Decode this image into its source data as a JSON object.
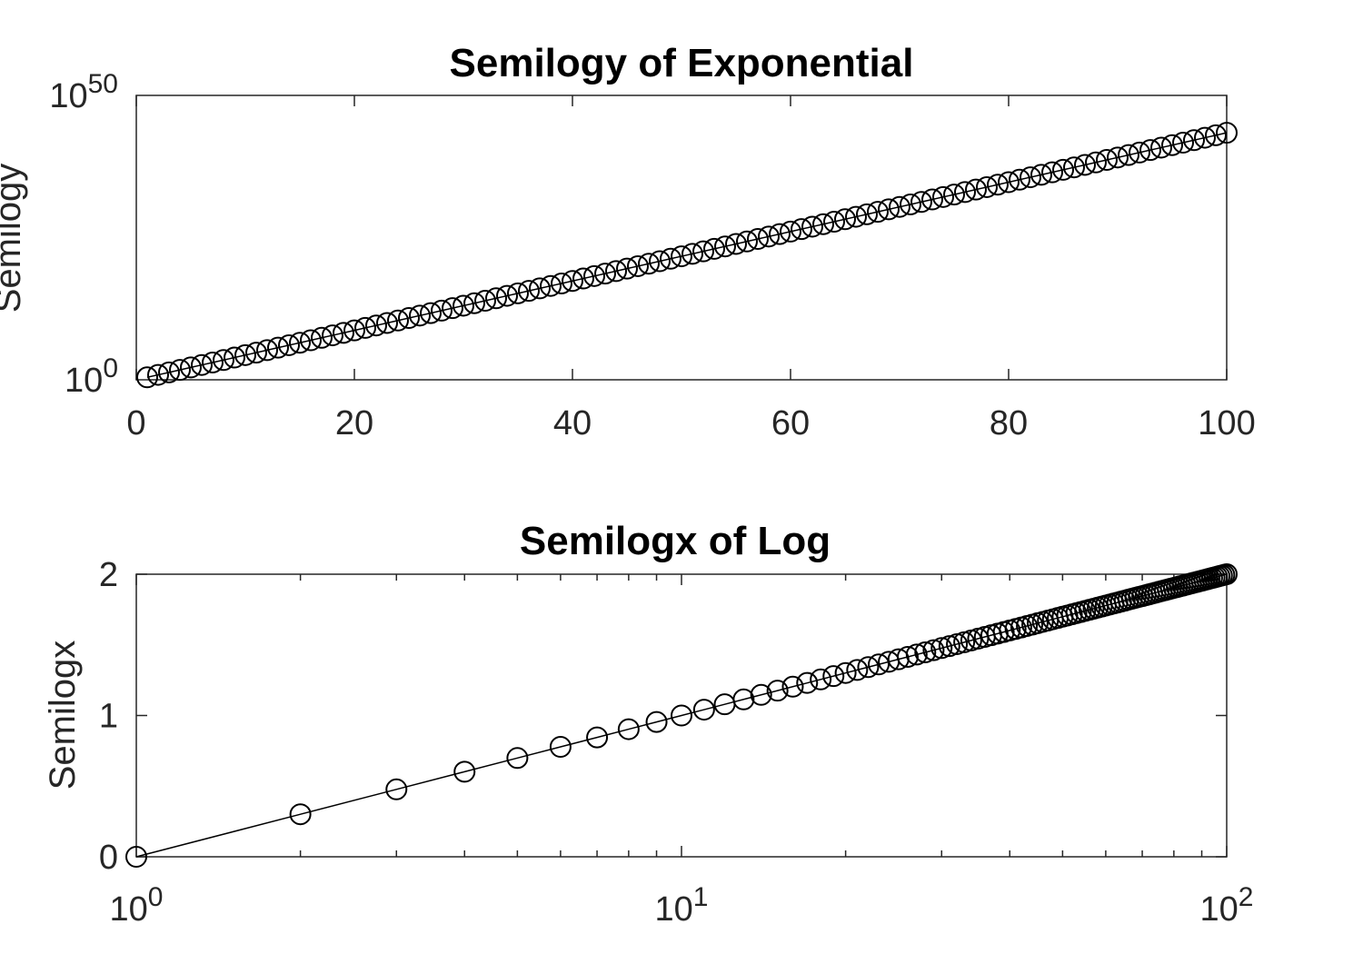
{
  "chart_data": [
    {
      "type": "line",
      "title": "Semilogy of Exponential",
      "xlabel": "",
      "ylabel": "Semilogy",
      "xscale": "linear",
      "yscale": "log",
      "xlim": [
        0,
        100
      ],
      "ylim": [
        1,
        1e+50
      ],
      "xticks": [
        0,
        20,
        40,
        60,
        80,
        100
      ],
      "xtick_labels": [
        "0",
        "20",
        "40",
        "60",
        "80",
        "100"
      ],
      "yticks": [
        1,
        1e+50
      ],
      "ytick_labels": [
        {
          "base": "10",
          "exp": "0"
        },
        {
          "base": "10",
          "exp": "50"
        }
      ],
      "grid": false,
      "marker": "circle",
      "series": [
        {
          "formula": "y = exp(x)",
          "x_start": 1,
          "x_end": 100,
          "x_step": 1,
          "note_values": "y = e^x for x = 1..100; y(1)=2.718, y(50)=5.18e21, y(100)=2.69e43",
          "color": "#000000"
        }
      ]
    },
    {
      "type": "line",
      "title": "Semilogx of Log",
      "xlabel": "",
      "ylabel": "Semilogx",
      "xscale": "log",
      "yscale": "linear",
      "xlim": [
        1,
        100
      ],
      "ylim": [
        0,
        2
      ],
      "xticks": [
        1,
        10,
        100
      ],
      "xtick_labels": [
        {
          "base": "10",
          "exp": "0"
        },
        {
          "base": "10",
          "exp": "1"
        },
        {
          "base": "10",
          "exp": "2"
        }
      ],
      "yticks": [
        0,
        1,
        2
      ],
      "ytick_labels": [
        "0",
        "1",
        "2"
      ],
      "grid": false,
      "marker": "circle",
      "series": [
        {
          "formula": "y = log10(x)",
          "x_start": 1,
          "x_end": 100,
          "x_step": 1,
          "note_values": "y = log10(x) for x = 1..100; y(1)=0, y(10)=1, y(100)=2",
          "color": "#000000"
        }
      ]
    }
  ]
}
